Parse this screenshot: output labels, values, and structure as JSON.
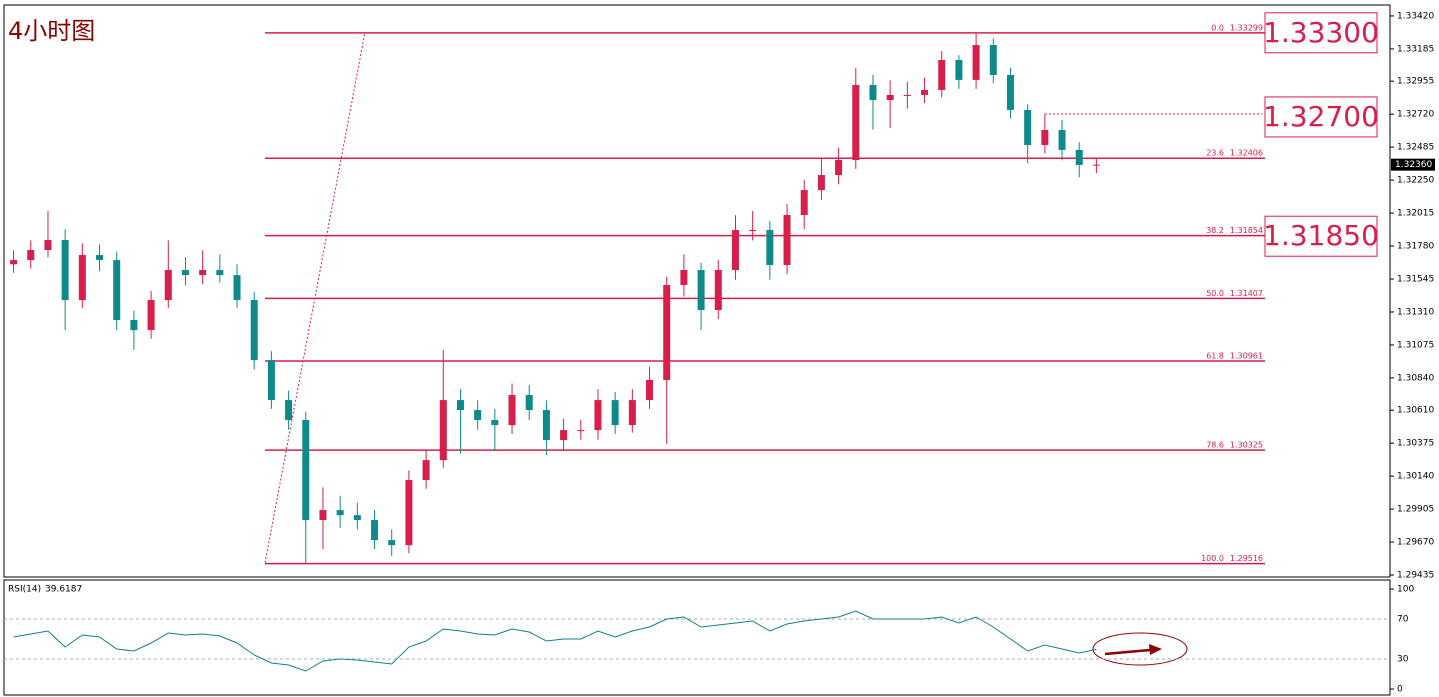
{
  "chart_data": {
    "type": "candlestick",
    "title": "4小时图",
    "colors": {
      "up": "#d81e4a",
      "down": "#0f8a8a"
    },
    "open": [
      1.3165,
      1.3168,
      1.31752,
      1.31823,
      1.31395,
      1.31716,
      1.3168,
      1.31253,
      1.31181,
      1.31395,
      1.31609,
      1.31573,
      1.31609,
      1.31573,
      1.31395,
      1.30967,
      1.30682,
      1.3054,
      1.29827,
      1.29898,
      1.29862,
      1.29827,
      1.29684,
      1.29648,
      1.30112,
      1.30254,
      1.30682,
      1.30611,
      1.3054,
      1.30504,
      1.30718,
      1.30611,
      1.30397,
      1.30468,
      1.30468,
      1.30682,
      1.30504,
      1.30682,
      1.30825,
      1.31502,
      1.31609,
      1.31324,
      1.31609,
      1.31894,
      1.31894,
      1.31645,
      1.32001,
      1.32179,
      1.32286,
      1.32393,
      1.32928,
      1.32821,
      1.32857,
      1.32857,
      1.32892,
      1.33106,
      1.32964,
      1.33213,
      1.32999,
      1.3275,
      1.325,
      1.32607,
      1.32465,
      1.32358
    ],
    "high": [
      1.3175,
      1.3182,
      1.3203,
      1.319,
      1.318,
      1.3179,
      1.3174,
      1.3132,
      1.3146,
      1.3182,
      1.317,
      1.3175,
      1.3172,
      1.3165,
      1.3145,
      1.3103,
      1.3075,
      1.306,
      1.3006,
      1.3,
      1.2995,
      1.299,
      1.2976,
      1.3018,
      1.3033,
      1.3104,
      1.3076,
      1.3068,
      1.3062,
      1.308,
      1.3079,
      1.3068,
      1.3055,
      1.3054,
      1.3076,
      1.3074,
      1.3076,
      1.3092,
      1.3156,
      1.3172,
      1.3166,
      1.3168,
      1.32,
      1.3203,
      1.3196,
      1.3208,
      1.3225,
      1.324,
      1.3248,
      1.3305,
      1.33,
      1.3296,
      1.3295,
      1.3298,
      1.3317,
      1.3314,
      1.33299,
      1.3326,
      1.3305,
      1.3279,
      1.3272,
      1.3268,
      1.3252,
      1.324
    ],
    "low": [
      1.3159,
      1.3162,
      1.317,
      1.3118,
      1.3134,
      1.316,
      1.3118,
      1.3104,
      1.3112,
      1.3134,
      1.315,
      1.3151,
      1.3152,
      1.3134,
      1.309,
      1.3062,
      1.3047,
      1.29516,
      1.2962,
      1.2977,
      1.2976,
      1.2962,
      1.2957,
      1.2959,
      1.3005,
      1.302,
      1.303,
      1.3047,
      1.3032,
      1.3044,
      1.3054,
      1.3029,
      1.3032,
      1.304,
      1.304,
      1.3044,
      1.3045,
      1.3062,
      1.3037,
      1.3142,
      1.3118,
      1.3126,
      1.3154,
      1.3182,
      1.3154,
      1.3158,
      1.319,
      1.3211,
      1.3222,
      1.3233,
      1.3261,
      1.3262,
      1.3276,
      1.328,
      1.3284,
      1.329,
      1.329,
      1.3294,
      1.3269,
      1.3237,
      1.3244,
      1.3239,
      1.3227,
      1.323
    ],
    "close": [
      1.3168,
      1.31752,
      1.31823,
      1.31395,
      1.31716,
      1.3168,
      1.31253,
      1.31181,
      1.31395,
      1.31609,
      1.31573,
      1.31609,
      1.31573,
      1.31395,
      1.30967,
      1.30682,
      1.3054,
      1.29827,
      1.29898,
      1.29862,
      1.29827,
      1.29684,
      1.29648,
      1.30112,
      1.30254,
      1.30682,
      1.30611,
      1.3054,
      1.30504,
      1.30718,
      1.30611,
      1.30397,
      1.30468,
      1.30468,
      1.30682,
      1.30504,
      1.30682,
      1.30825,
      1.31502,
      1.31609,
      1.31324,
      1.31609,
      1.31894,
      1.31894,
      1.31645,
      1.32001,
      1.32179,
      1.32286,
      1.32393,
      1.32928,
      1.32821,
      1.32857,
      1.32857,
      1.32892,
      1.33106,
      1.32964,
      1.33213,
      1.32999,
      1.3275,
      1.325,
      1.32607,
      1.32465,
      1.32358,
      1.3236
    ],
    "ylim": [
      1.29421,
      1.33498
    ],
    "yticks": [
      {
        "value": 1.3342,
        "label": "1.33420"
      },
      1.33185,
      1.32955,
      {
        "value": 1.3272,
        "label": "1.32720"
      },
      1.32485,
      {
        "value": 1.3225,
        "label": "1.32250"
      },
      1.32015,
      {
        "value": 1.3178,
        "label": "1.31780"
      },
      1.31545,
      {
        "value": 1.3131,
        "label": "1.31310"
      },
      1.31075,
      {
        "value": 1.3084,
        "label": "1.30840"
      },
      {
        "value": 1.3061,
        "label": "1.30610"
      },
      1.30375,
      {
        "value": 1.3014,
        "label": "1.30140"
      },
      1.29905,
      {
        "value": 1.2967,
        "label": "1.29670"
      },
      1.29435
    ],
    "last_price": {
      "value": 1.3236,
      "label": "1.32360"
    },
    "fib": {
      "color": "#d81e4a",
      "levels": [
        {
          "level": "0.0",
          "value": 1.33299
        },
        {
          "level": "23.6",
          "value": 1.32406
        },
        {
          "level": "38.2",
          "value": 1.31854
        },
        {
          "level": "50.0",
          "value": 1.31407
        },
        {
          "level": "61.8",
          "value": 1.30961
        },
        {
          "level": "78.6",
          "value": 1.30325
        },
        {
          "level": "100.0",
          "value": 1.29516
        }
      ]
    },
    "key_levels": [
      {
        "value": 1.333,
        "label": "1.33300"
      },
      {
        "value": 1.327,
        "label": "1.32700"
      },
      {
        "value": 1.3185,
        "label": "1.31850"
      }
    ],
    "rsi": {
      "name": "RSI(14)",
      "color": "#12808a",
      "ylim": [
        0,
        100
      ],
      "yticks": [
        100,
        70,
        30,
        0
      ],
      "values": [
        52,
        55,
        58,
        42,
        54,
        52,
        40,
        38,
        46,
        56,
        54,
        55,
        53,
        46,
        34,
        26,
        24,
        18,
        28,
        30,
        29,
        27,
        25,
        42,
        48,
        60,
        58,
        55,
        54,
        60,
        57,
        48,
        50,
        50,
        58,
        52,
        58,
        62,
        70,
        72,
        62,
        64,
        66,
        68,
        58,
        65,
        68,
        70,
        72,
        78,
        70,
        70,
        70,
        70,
        72,
        66,
        72,
        62,
        50,
        38,
        44,
        40,
        36,
        39.6187
      ]
    }
  }
}
